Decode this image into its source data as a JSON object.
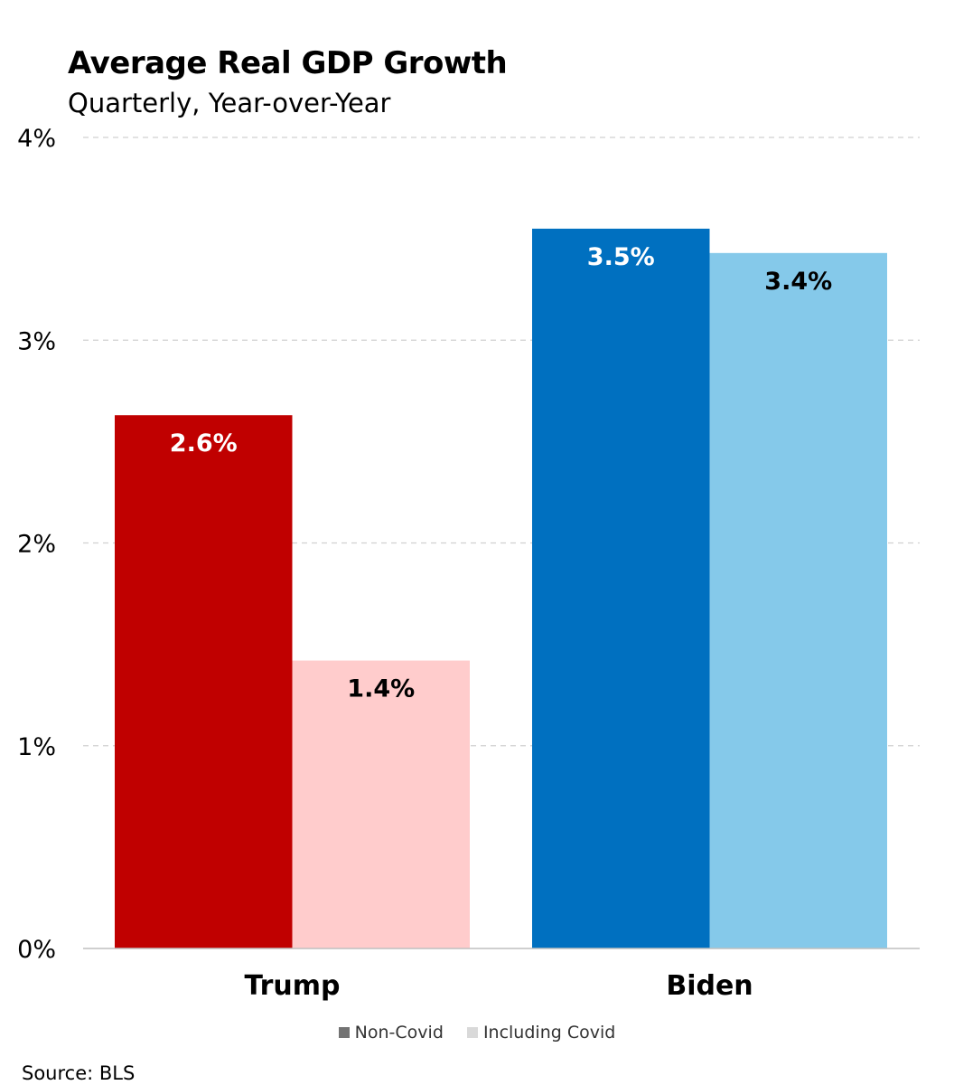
{
  "chart_data": {
    "type": "bar",
    "title": "Average Real GDP Growth",
    "subtitle": "Quarterly, Year-over-Year",
    "categories": [
      "Trump",
      "Biden"
    ],
    "series": [
      {
        "name": "Non-Covid",
        "values": [
          2.63,
          3.55
        ],
        "labels": [
          "2.6%",
          "3.5%"
        ],
        "colors": [
          "#c00000",
          "#0070c0"
        ],
        "label_color": "#ffffff"
      },
      {
        "name": "Including Covid",
        "values": [
          1.42,
          3.43
        ],
        "labels": [
          "1.4%",
          "3.4%"
        ],
        "colors": [
          "#ffcccc",
          "#85c9ea"
        ],
        "label_color": "#000000"
      }
    ],
    "ylim": [
      0,
      4
    ],
    "yticks": [
      0,
      1,
      2,
      3,
      4
    ],
    "yticklabels": [
      "0%",
      "1%",
      "2%",
      "3%",
      "4%"
    ],
    "grid": true,
    "legend": {
      "placement": "bottom",
      "entries": [
        {
          "label": "Non-Covid",
          "color": "#737373"
        },
        {
          "label": "Including Covid",
          "color": "#d9d9d9"
        }
      ]
    },
    "source": "Source: BLS"
  }
}
